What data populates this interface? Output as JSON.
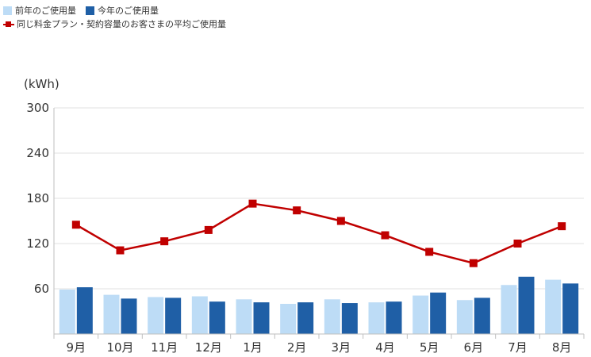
{
  "legend": {
    "prev_year_label": "前年のご使用量",
    "this_year_label": "今年のご使用量",
    "avg_label": "同じ料金プラン・契約容量のお客さまの平均ご使用量"
  },
  "colors": {
    "prev_year": "#bddcf6",
    "this_year": "#1f5fa6",
    "avg": "#c00000",
    "grid": "#e2e2e2",
    "axis": "#bfbfbf"
  },
  "chart_data": {
    "type": "bar",
    "unit_label": "(kWh)",
    "categories": [
      "9月",
      "10月",
      "11月",
      "12月",
      "1月",
      "2月",
      "3月",
      "4月",
      "5月",
      "6月",
      "7月",
      "8月"
    ],
    "ylim": [
      0,
      300
    ],
    "yticks": [
      60,
      120,
      180,
      240,
      300
    ],
    "grid": true,
    "legend_position": "top-left",
    "series": [
      {
        "name": "前年のご使用量",
        "kind": "bar",
        "values": [
          59,
          52,
          49,
          50,
          46,
          40,
          46,
          42,
          51,
          45,
          65,
          72
        ]
      },
      {
        "name": "今年のご使用量",
        "kind": "bar",
        "values": [
          62,
          47,
          48,
          43,
          42,
          42,
          41,
          43,
          55,
          48,
          76,
          67
        ]
      },
      {
        "name": "同じ料金プラン・契約容量のお客さまの平均ご使用量",
        "kind": "line",
        "values": [
          145,
          111,
          123,
          138,
          173,
          164,
          150,
          131,
          109,
          94,
          120,
          143
        ]
      }
    ]
  }
}
